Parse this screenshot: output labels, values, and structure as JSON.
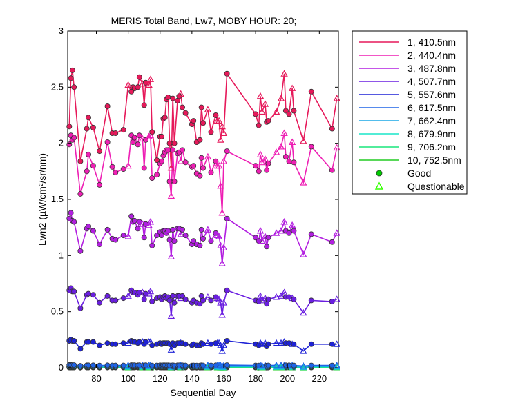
{
  "chart_data": {
    "type": "line",
    "title": "MERIS Total Band, Lw7, MOBY HOUR: 20;",
    "xlabel": "Sequential Day",
    "ylabel": "Lwn2 (µW/cm²/sr/nm)",
    "xlim": [
      62,
      232
    ],
    "ylim": [
      0,
      3
    ],
    "xticks": [
      80,
      100,
      120,
      140,
      160,
      180,
      200,
      220
    ],
    "yticks": [
      0,
      0.5,
      1,
      1.5,
      2,
      2.5,
      3
    ],
    "xtick_labels": [
      "80",
      "100",
      "120",
      "140",
      "160",
      "180",
      "200",
      "220"
    ],
    "ytick_labels": [
      "0",
      "0.5",
      "1",
      "1.5",
      "2",
      "2.5",
      "3"
    ],
    "grid": false,
    "legend_position": "outside-right",
    "markers": {
      "good": {
        "label": "Good",
        "shape": "circle",
        "color": "#00cc00"
      },
      "questionable": {
        "label": "Questionable",
        "shape": "triangle",
        "color": "#33ff00"
      }
    },
    "series": [
      {
        "name": "1, 410.5nm",
        "color": "#e6195a"
      },
      {
        "name": "2, 440.4nm",
        "color": "#ee1fb4"
      },
      {
        "name": "3, 487.8nm",
        "color": "#b21fe0"
      },
      {
        "name": "4, 507.7nm",
        "color": "#6a1ee0"
      },
      {
        "name": "5, 557.6nm",
        "color": "#1e22d6"
      },
      {
        "name": "6, 617.5nm",
        "color": "#1f64e6"
      },
      {
        "name": "7, 662.4nm",
        "color": "#19a7e6"
      },
      {
        "name": "8, 679.9nm",
        "color": "#19e6c8"
      },
      {
        "name": "9, 706.2nm",
        "color": "#19e67c"
      },
      {
        "name": "10, 752.5nm",
        "color": "#22cc22"
      }
    ],
    "x": [
      63,
      64,
      65,
      66,
      70,
      74,
      75,
      78,
      82,
      87,
      90,
      92,
      97,
      100,
      102,
      103,
      104,
      106,
      107,
      109,
      110,
      111,
      113,
      114,
      115,
      118,
      120,
      121,
      122,
      123,
      124,
      125,
      126,
      127,
      128,
      129,
      131,
      132,
      133,
      134,
      136,
      140,
      141,
      143,
      145,
      146,
      147,
      150,
      152,
      155,
      156,
      157,
      158,
      159,
      160,
      162,
      180,
      182,
      183,
      184,
      186,
      187,
      188,
      193,
      196,
      198,
      199,
      201,
      203,
      204,
      210,
      215,
      228,
      231
    ],
    "values_410": [
      2.15,
      2.58,
      2.65,
      2.5,
      1.84,
      2.13,
      2.23,
      2.14,
      1.93,
      2.33,
      2.09,
      2.09,
      2.12,
      2.52,
      2.46,
      2.5,
      2.49,
      2.5,
      2.59,
      2.53,
      2.34,
      2.54,
      2.52,
      2.57,
      2.1,
      1.85,
      2.06,
      2.06,
      2.22,
      2.23,
      2.39,
      2.41,
      2.0,
      1.78,
      2.4,
      2.0,
      2.38,
      2.42,
      2.44,
      2.32,
      2.27,
      2.17,
      2.2,
      2.01,
      2.03,
      2.32,
      2.18,
      2.3,
      2.1,
      2.25,
      2.2,
      2.2,
      2.03,
      2.15,
      2.09,
      2.62,
      2.26,
      2.16,
      2.42,
      2.28,
      2.35,
      2.19,
      2.2,
      2.28,
      2.4,
      2.62,
      2.29,
      2.26,
      2.49,
      2.29,
      2.02,
      2.46,
      2.13,
      2.4
    ],
    "values_440": [
      1.99,
      2.07,
      2.03,
      2.05,
      1.55,
      1.75,
      1.9,
      1.8,
      1.63,
      2.01,
      1.79,
      1.74,
      1.77,
      1.8,
      2.07,
      2.01,
      2.05,
      1.99,
      2.07,
      2.04,
      1.78,
      2.03,
      2.06,
      2.07,
      1.69,
      1.72,
      1.82,
      1.84,
      1.89,
      1.92,
      1.94,
      1.94,
      1.66,
      1.53,
      1.94,
      1.66,
      1.91,
      1.92,
      1.84,
      1.94,
      1.83,
      1.79,
      1.8,
      1.73,
      1.71,
      1.87,
      1.78,
      1.88,
      1.74,
      1.84,
      1.8,
      1.8,
      1.62,
      1.38,
      1.84,
      1.93,
      1.8,
      1.75,
      1.9,
      1.83,
      1.86,
      1.76,
      1.82,
      1.92,
      1.97,
      2.09,
      1.88,
      1.84,
      2.01,
      1.83,
      1.65,
      1.97,
      1.76,
      1.96
    ],
    "values_487": [
      1.33,
      1.38,
      1.31,
      1.3,
      1.04,
      1.24,
      1.26,
      1.22,
      1.1,
      1.23,
      1.15,
      1.14,
      1.18,
      1.17,
      1.35,
      1.3,
      1.31,
      1.24,
      1.3,
      1.28,
      1.16,
      1.28,
      1.27,
      1.3,
      1.09,
      1.18,
      1.21,
      1.18,
      1.22,
      1.22,
      1.2,
      1.22,
      1.14,
      0.99,
      1.23,
      1.13,
      1.24,
      1.24,
      1.19,
      1.23,
      1.18,
      1.1,
      1.13,
      1.1,
      1.09,
      1.23,
      1.15,
      1.23,
      1.13,
      1.2,
      1.18,
      1.17,
      1.09,
      0.93,
      1.07,
      1.33,
      1.16,
      1.13,
      1.22,
      1.13,
      1.17,
      1.08,
      1.16,
      1.2,
      1.22,
      1.3,
      1.22,
      1.2,
      1.27,
      1.22,
      1.01,
      1.19,
      1.12,
      1.2
    ],
    "values_507": [
      0.69,
      0.71,
      0.68,
      0.68,
      0.53,
      0.65,
      0.66,
      0.65,
      0.58,
      0.64,
      0.6,
      0.6,
      0.62,
      0.64,
      0.69,
      0.67,
      0.67,
      0.65,
      0.67,
      0.67,
      0.61,
      0.66,
      0.66,
      0.68,
      0.59,
      0.62,
      0.63,
      0.61,
      0.63,
      0.64,
      0.62,
      0.63,
      0.6,
      0.46,
      0.64,
      0.58,
      0.64,
      0.64,
      0.62,
      0.64,
      0.61,
      0.58,
      0.6,
      0.58,
      0.57,
      0.64,
      0.6,
      0.63,
      0.6,
      0.63,
      0.62,
      0.61,
      0.58,
      0.47,
      0.58,
      0.69,
      0.6,
      0.59,
      0.64,
      0.6,
      0.62,
      0.57,
      0.61,
      0.63,
      0.64,
      0.67,
      0.63,
      0.63,
      0.62,
      0.61,
      0.49,
      0.6,
      0.59,
      0.61
    ],
    "values_557": [
      0.24,
      0.25,
      0.24,
      0.24,
      0.17,
      0.23,
      0.23,
      0.23,
      0.2,
      0.22,
      0.21,
      0.21,
      0.22,
      0.22,
      0.24,
      0.23,
      0.23,
      0.22,
      0.23,
      0.23,
      0.21,
      0.23,
      0.23,
      0.23,
      0.2,
      0.21,
      0.22,
      0.21,
      0.22,
      0.22,
      0.22,
      0.22,
      0.21,
      0.16,
      0.22,
      0.2,
      0.22,
      0.22,
      0.22,
      0.22,
      0.21,
      0.2,
      0.21,
      0.2,
      0.2,
      0.22,
      0.21,
      0.22,
      0.21,
      0.22,
      0.22,
      0.22,
      0.2,
      0.15,
      0.2,
      0.24,
      0.21,
      0.2,
      0.22,
      0.21,
      0.22,
      0.19,
      0.21,
      0.22,
      0.22,
      0.23,
      0.22,
      0.22,
      0.21,
      0.21,
      0.15,
      0.21,
      0.21,
      0.21
    ],
    "values_617": [
      0.025,
      0.025,
      0.024,
      0.024,
      0.018,
      0.022,
      0.022,
      0.022,
      0.02,
      0.022,
      0.021,
      0.021,
      0.021,
      0.022,
      0.024,
      0.023,
      0.023,
      0.022,
      0.023,
      0.023,
      0.021,
      0.023,
      0.023,
      0.023,
      0.02,
      0.021,
      0.022,
      0.021,
      0.022,
      0.022,
      0.022,
      0.022,
      0.021,
      0.016,
      0.022,
      0.02,
      0.022,
      0.022,
      0.022,
      0.022,
      0.021,
      0.02,
      0.021,
      0.02,
      0.02,
      0.022,
      0.021,
      0.022,
      0.021,
      0.022,
      0.022,
      0.022,
      0.02,
      0.016,
      0.02,
      0.024,
      0.021,
      0.02,
      0.022,
      0.021,
      0.022,
      0.019,
      0.021,
      0.022,
      0.022,
      0.023,
      0.022,
      0.022,
      0.021,
      0.021,
      0.016,
      0.021,
      0.021,
      0.021
    ],
    "values_662": [
      0.012,
      0.012,
      0.012,
      0.012,
      0.009,
      0.011,
      0.011,
      0.011,
      0.01,
      0.011,
      0.01,
      0.01,
      0.011,
      0.011,
      0.012,
      0.012,
      0.012,
      0.011,
      0.012,
      0.012,
      0.011,
      0.012,
      0.012,
      0.012,
      0.01,
      0.011,
      0.011,
      0.011,
      0.011,
      0.011,
      0.011,
      0.011,
      0.011,
      0.008,
      0.011,
      0.01,
      0.011,
      0.011,
      0.011,
      0.011,
      0.011,
      0.01,
      0.011,
      0.01,
      0.01,
      0.011,
      0.011,
      0.011,
      0.011,
      0.011,
      0.011,
      0.011,
      0.01,
      0.008,
      0.01,
      0.012,
      0.011,
      0.01,
      0.011,
      0.011,
      0.011,
      0.01,
      0.011,
      0.011,
      0.011,
      0.012,
      0.011,
      0.011,
      0.011,
      0.011,
      0.008,
      0.011,
      0.011,
      0.011
    ],
    "values_679": [
      0.01,
      0.01,
      0.01,
      0.01,
      0.008,
      0.009,
      0.009,
      0.009,
      0.008,
      0.009,
      0.009,
      0.009,
      0.009,
      0.009,
      0.01,
      0.01,
      0.01,
      0.009,
      0.01,
      0.01,
      0.009,
      0.01,
      0.01,
      0.01,
      0.008,
      0.009,
      0.009,
      0.009,
      0.009,
      0.009,
      0.009,
      0.009,
      0.009,
      0.007,
      0.009,
      0.008,
      0.009,
      0.009,
      0.009,
      0.009,
      0.009,
      0.008,
      0.009,
      0.008,
      0.008,
      0.009,
      0.009,
      0.009,
      0.009,
      0.009,
      0.009,
      0.009,
      0.008,
      0.007,
      0.008,
      0.01,
      0.009,
      0.008,
      0.009,
      0.009,
      0.009,
      0.008,
      0.009,
      0.009,
      0.009,
      0.01,
      0.009,
      0.009,
      0.009,
      0.009,
      0.007,
      0.009,
      0.009,
      0.009
    ],
    "values_706": [
      0.006,
      0.006,
      0.006,
      0.006,
      0.005,
      0.006,
      0.006,
      0.006,
      0.005,
      0.006,
      0.005,
      0.005,
      0.006,
      0.006,
      0.006,
      0.006,
      0.006,
      0.006,
      0.006,
      0.006,
      0.005,
      0.006,
      0.006,
      0.006,
      0.005,
      0.005,
      0.006,
      0.005,
      0.006,
      0.006,
      0.006,
      0.006,
      0.005,
      0.004,
      0.006,
      0.005,
      0.006,
      0.006,
      0.006,
      0.006,
      0.005,
      0.005,
      0.005,
      0.005,
      0.005,
      0.006,
      0.005,
      0.006,
      0.005,
      0.006,
      0.006,
      0.006,
      0.005,
      0.004,
      0.005,
      0.006,
      0.005,
      0.005,
      0.006,
      0.005,
      0.006,
      0.005,
      0.005,
      0.006,
      0.006,
      0.006,
      0.006,
      0.006,
      0.005,
      0.005,
      0.004,
      0.005,
      0.005,
      0.005
    ],
    "values_752": [
      0.003,
      0.003,
      0.003,
      0.003,
      0.002,
      0.003,
      0.003,
      0.003,
      0.002,
      0.003,
      0.003,
      0.003,
      0.003,
      0.003,
      0.003,
      0.003,
      0.003,
      0.003,
      0.003,
      0.003,
      0.003,
      0.003,
      0.003,
      0.003,
      0.002,
      0.003,
      0.003,
      0.003,
      0.003,
      0.003,
      0.003,
      0.003,
      0.003,
      0.002,
      0.003,
      0.002,
      0.003,
      0.003,
      0.003,
      0.003,
      0.003,
      0.002,
      0.003,
      0.002,
      0.002,
      0.003,
      0.003,
      0.003,
      0.003,
      0.003,
      0.003,
      0.003,
      0.002,
      0.002,
      0.002,
      0.003,
      0.003,
      0.002,
      0.003,
      0.003,
      0.003,
      0.002,
      0.003,
      0.003,
      0.003,
      0.003,
      0.003,
      0.003,
      0.003,
      0.003,
      0.002,
      0.003,
      0.003,
      0.003
    ],
    "quality": [
      "g",
      "g",
      "g",
      "g",
      "g",
      "g",
      "g",
      "g",
      "g",
      "g",
      "g",
      "g",
      "g",
      "q",
      "g",
      "g",
      "g",
      "g",
      "g",
      "q",
      "g",
      "g",
      "q",
      "q",
      "g",
      "g",
      "g",
      "g",
      "g",
      "g",
      "g",
      "g",
      "g",
      "q",
      "g",
      "g",
      "g",
      "g",
      "q",
      "g",
      "g",
      "g",
      "g",
      "g",
      "g",
      "g",
      "g",
      "q",
      "g",
      "g",
      "q",
      "q",
      "q",
      "q",
      "q",
      "g",
      "g",
      "g",
      "q",
      "q",
      "q",
      "g",
      "g",
      "q",
      "q",
      "q",
      "g",
      "g",
      "q",
      "g",
      "q",
      "g",
      "g",
      "q"
    ]
  }
}
